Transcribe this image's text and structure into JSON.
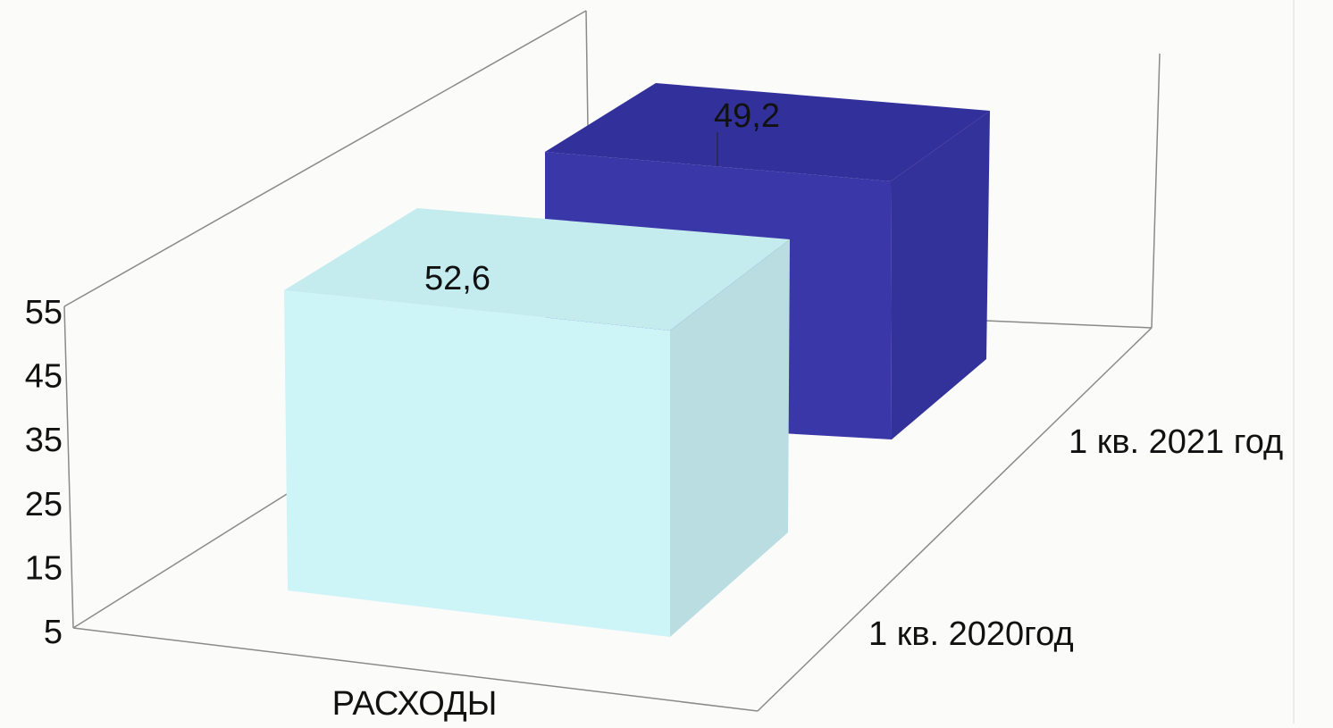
{
  "chart_data": {
    "type": "bar",
    "style": "3d-column",
    "categories": [
      "РАСХОДЫ"
    ],
    "series": [
      {
        "name": "1 кв. 2020год",
        "values": [
          52.6
        ],
        "color": "#cdf4f7",
        "value_label": "52,6"
      },
      {
        "name": "1 кв. 2021 год",
        "values": [
          49.2
        ],
        "color": "#3a37a8",
        "value_label": "49,2"
      }
    ],
    "y_ticks": [
      5,
      15,
      25,
      35,
      45,
      55
    ],
    "y_tick_labels": [
      "5",
      "15",
      "25",
      "35",
      "45",
      "55"
    ],
    "xlabel": "РАСХОДЫ",
    "grid": false,
    "legend": "none"
  },
  "colors": {
    "front_bar_front": "#cdf4f7",
    "front_bar_top": "#c4ecef",
    "front_bar_side": "#b9dde1",
    "back_bar_front": "#3a37a8",
    "back_bar_top": "#32319c",
    "back_bar_side": "#33319a",
    "wall_lines": "#8a8a8a"
  }
}
